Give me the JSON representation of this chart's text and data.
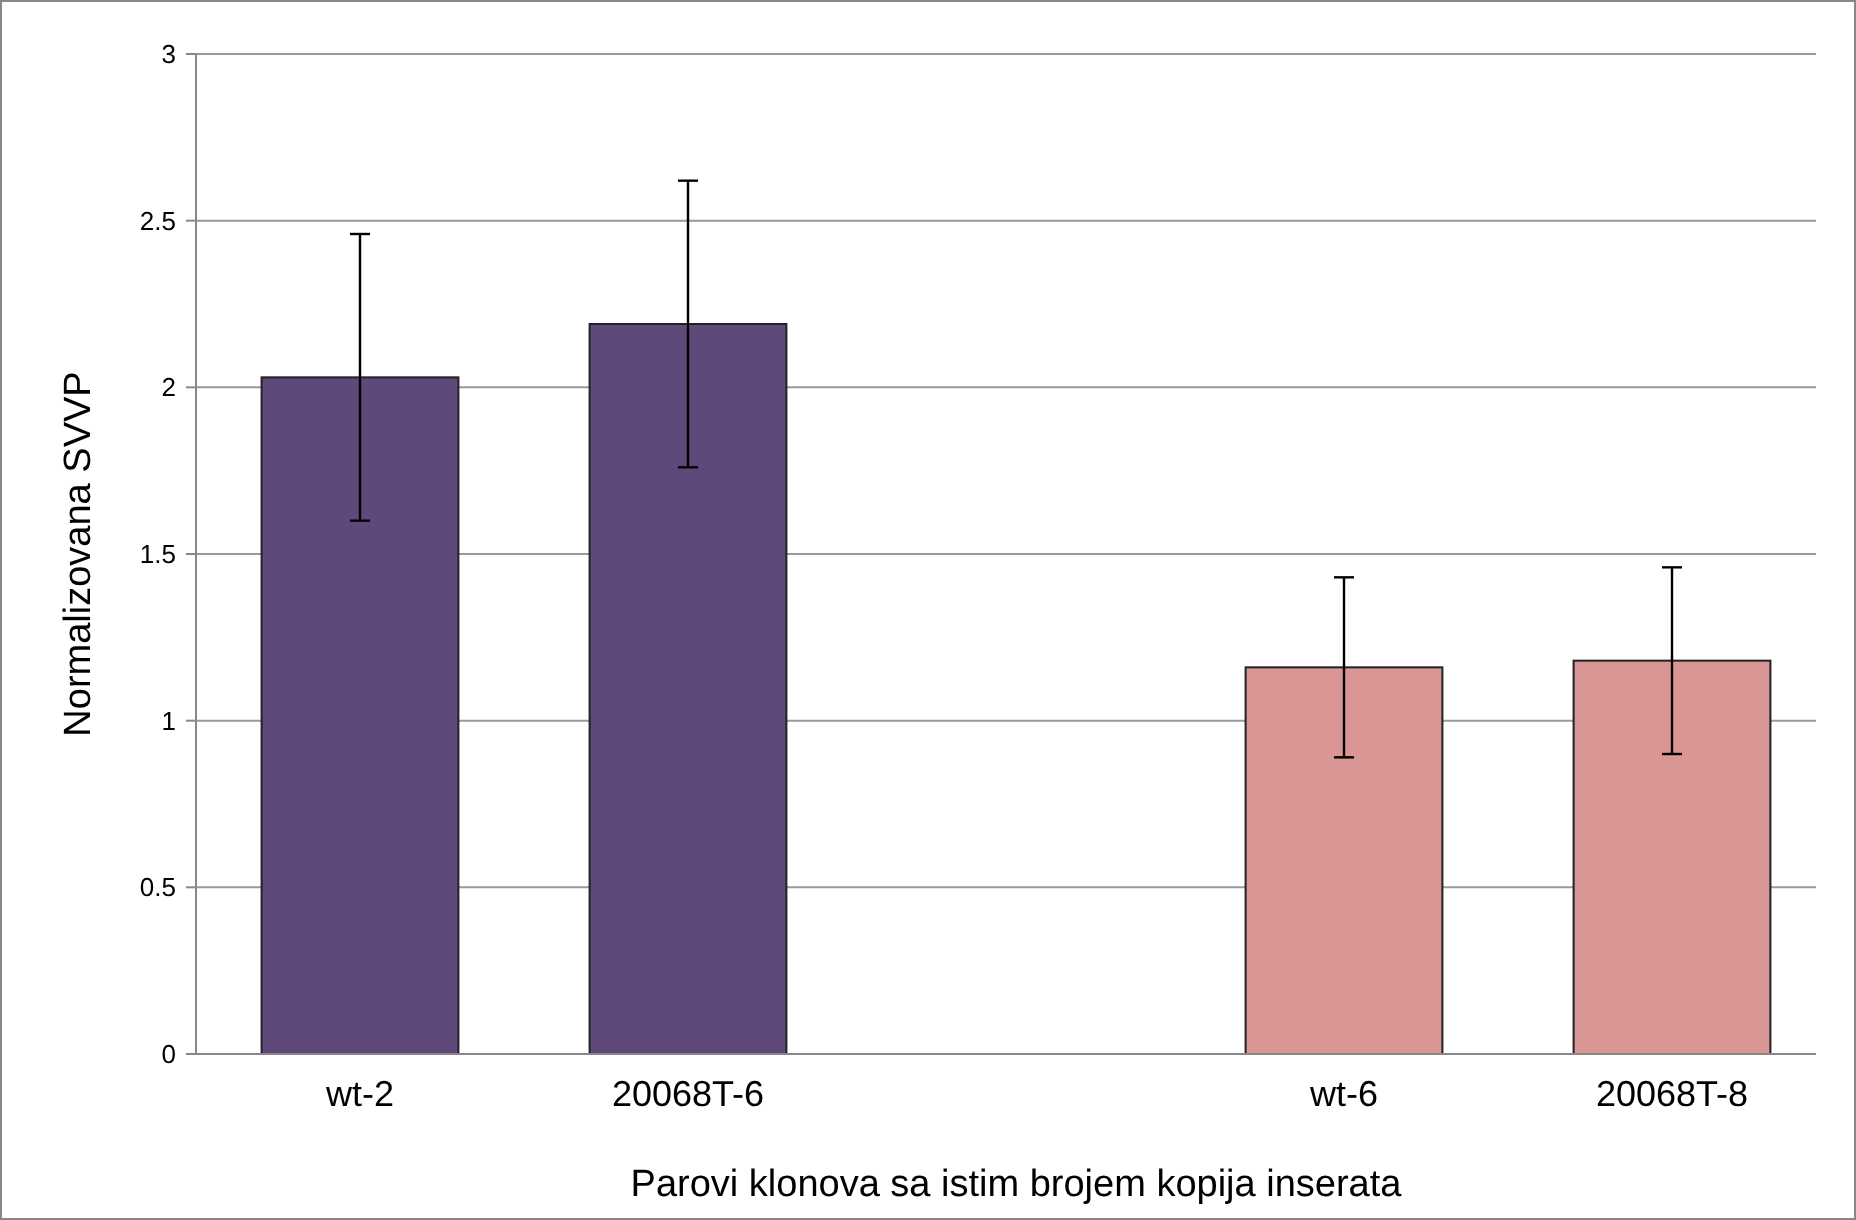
{
  "chart_data": {
    "type": "bar",
    "xlabel": "Parovi klonova sa istim brojem kopija inserata",
    "ylabel": "Normalizovana SVVP",
    "categories": [
      "wt-2",
      "20068T-6",
      null,
      "wt-6",
      "20068T-8"
    ],
    "values": [
      2.03,
      2.19,
      null,
      1.16,
      1.18
    ],
    "errors": [
      0.43,
      0.43,
      null,
      0.27,
      0.28
    ],
    "colors": [
      "#5f497a",
      "#5f497a",
      null,
      "#d99694",
      "#d99694"
    ],
    "ylim": [
      0,
      3
    ],
    "yticks": [
      0,
      0.5,
      1,
      1.5,
      2,
      2.5,
      3
    ],
    "grid": "y"
  }
}
